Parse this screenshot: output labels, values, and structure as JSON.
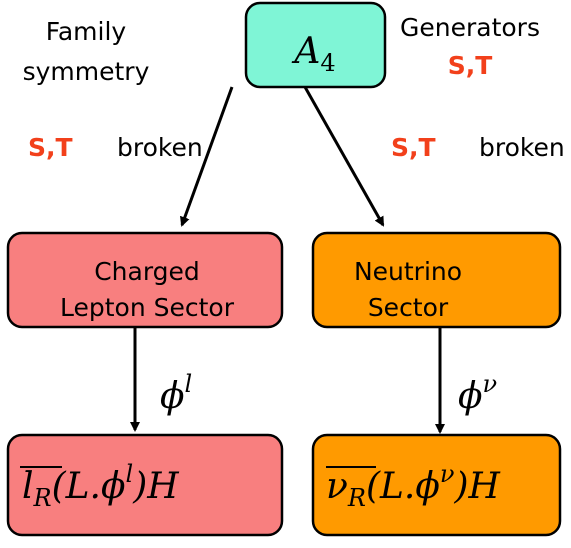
{
  "nodes": [
    {
      "label": [
        "A",
        "4"
      ]
    },
    {
      "label": [
        "Charged",
        "Lepton Sector"
      ]
    },
    {
      "label": [
        "Neutrino",
        "Sector"
      ]
    },
    {
      "label": [
        "l",
        "R",
        "(L.ϕ",
        "l",
        ")H"
      ]
    },
    {
      "label": [
        "ν",
        "R",
        "(L.ϕ",
        "ν",
        ")H"
      ]
    }
  ],
  "annotations": {
    "family": [
      "Family",
      "symmetry"
    ],
    "generators": {
      "title": "Generators",
      "names": "S,T"
    },
    "broken_left": {
      "names": "S,T",
      "text": "broken"
    },
    "broken_right": {
      "names": "S,T",
      "text": "broken"
    },
    "phi_left": [
      "ϕ",
      "l"
    ],
    "phi_right": [
      "ϕ",
      "ν"
    ]
  }
}
